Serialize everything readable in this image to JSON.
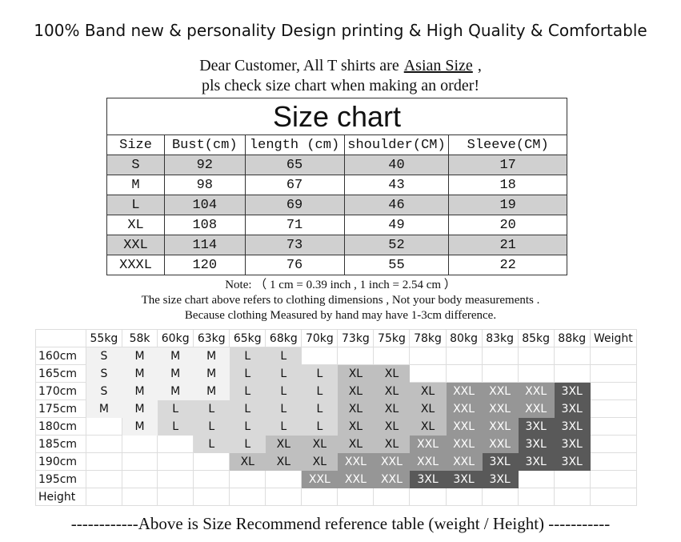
{
  "header": {
    "title": "100% Band new & personality Design printing & High Quality & Comfortable"
  },
  "notice": {
    "line1": [
      "Dear Customer, All T shirts are",
      "Asian Size",
      ","
    ],
    "line2": "pls check size chart when making an order!"
  },
  "size_chart": {
    "title": "Size chart",
    "headers": [
      "Size",
      "Bust(cm)",
      "length (cm)",
      "shoulder(CM)",
      "Sleeve(CM)"
    ],
    "rows": [
      [
        "S",
        92,
        65,
        40,
        17
      ],
      [
        "M",
        98,
        67,
        43,
        18
      ],
      [
        "L",
        104,
        69,
        46,
        19
      ],
      [
        "XL",
        108,
        71,
        49,
        20
      ],
      [
        "XXL",
        114,
        73,
        52,
        21
      ],
      [
        "XXXL",
        120,
        76,
        55,
        22
      ]
    ]
  },
  "notes": [
    "Note: （ 1 cm = 0.39 inch , 1 inch = 2.54 cm ）",
    "The size chart above refers to clothing dimensions , Not your body measurements .",
    "Because clothing Measured by hand may have 1-3cm difference."
  ],
  "recommend_table": {
    "weights": [
      "55kg",
      "58k",
      "60kg",
      "63kg",
      "65kg",
      "68kg",
      "70kg",
      "73kg",
      "75kg",
      "78kg",
      "80kg",
      "83kg",
      "85kg",
      "88kg"
    ],
    "weight_label": "Weight",
    "height_label": "Height",
    "shades": [
      "#f2f2f2",
      "#f2f2f2",
      "#d9d9d9",
      "#bfbfbf",
      "#969696",
      "#595959"
    ],
    "rows": [
      {
        "height": "160cm",
        "cells": [
          "S",
          "M",
          "M",
          "M",
          "L",
          "L",
          null,
          null,
          null,
          null,
          null,
          null,
          null,
          null
        ]
      },
      {
        "height": "165cm",
        "cells": [
          "S",
          "M",
          "M",
          "M",
          "L",
          "L",
          "L",
          "XL",
          "XL",
          null,
          null,
          null,
          null,
          null
        ]
      },
      {
        "height": "170cm",
        "cells": [
          "S",
          "M",
          "M",
          "M",
          "L",
          "L",
          "L",
          "XL",
          "XL",
          "XL",
          "XXL",
          "XXL",
          "XXL",
          "3XL"
        ]
      },
      {
        "height": "175cm",
        "cells": [
          "M",
          "M",
          "L",
          "L",
          "L",
          "L",
          "L",
          "XL",
          "XL",
          "XL",
          "XXL",
          "XXL",
          "XXL",
          "3XL"
        ]
      },
      {
        "height": "180cm",
        "cells": [
          null,
          "M",
          "L",
          "L",
          "L",
          "L",
          "L",
          "XL",
          "XL",
          "XL",
          "XXL",
          "XXL",
          "3XL",
          "3XL"
        ]
      },
      {
        "height": "185cm",
        "cells": [
          null,
          null,
          null,
          "L",
          "L",
          "XL",
          "XL",
          "XL",
          "XL",
          "XXL",
          "XXL",
          "XXL",
          "3XL",
          "3XL"
        ]
      },
      {
        "height": "190cm",
        "cells": [
          null,
          null,
          null,
          null,
          "XL",
          "XL",
          "XL",
          "XXL",
          "XXL",
          "XXL",
          "XXL",
          "3XL",
          "3XL",
          "3XL"
        ]
      },
      {
        "height": "195cm",
        "cells": [
          null,
          null,
          null,
          null,
          null,
          null,
          "XXL",
          "XXL",
          "XXL",
          "3XL",
          "3XL",
          "3XL",
          null,
          null
        ]
      }
    ]
  },
  "footer": "------------Above is Size Recommend reference table (weight / Height) -----------"
}
